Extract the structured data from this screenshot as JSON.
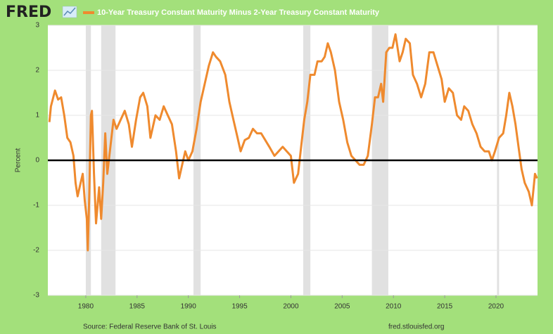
{
  "chart_data": {
    "type": "line",
    "brand": "FRED",
    "series": [
      {
        "name": "10-Year Treasury Constant Maturity Minus 2-Year Treasury Constant Maturity",
        "color": "#ef8a2e",
        "x": [
          1976.45,
          1976.6,
          1977.0,
          1977.3,
          1977.6,
          1977.9,
          1978.2,
          1978.5,
          1978.8,
          1979.0,
          1979.2,
          1979.5,
          1979.7,
          1979.9,
          1980.1,
          1980.2,
          1980.35,
          1980.5,
          1980.6,
          1980.8,
          1981.0,
          1981.3,
          1981.5,
          1981.7,
          1981.9,
          1982.1,
          1982.4,
          1982.7,
          1983.0,
          1983.4,
          1983.8,
          1984.2,
          1984.5,
          1984.9,
          1985.3,
          1985.6,
          1986.0,
          1986.3,
          1986.8,
          1987.2,
          1987.6,
          1988.0,
          1988.4,
          1988.8,
          1989.1,
          1989.4,
          1989.7,
          1990.0,
          1990.4,
          1990.8,
          1991.2,
          1991.6,
          1992.0,
          1992.4,
          1992.7,
          1993.1,
          1993.6,
          1994.0,
          1994.4,
          1994.8,
          1995.1,
          1995.5,
          1995.9,
          1996.3,
          1996.7,
          1997.1,
          1997.5,
          1997.9,
          1998.4,
          1998.8,
          1999.2,
          1999.6,
          2000.0,
          2000.3,
          2000.7,
          2001.0,
          2001.3,
          2001.6,
          2001.9,
          2002.3,
          2002.6,
          2003.0,
          2003.3,
          2003.6,
          2003.9,
          2004.3,
          2004.7,
          2005.1,
          2005.5,
          2005.9,
          2006.3,
          2006.7,
          2007.1,
          2007.5,
          2007.9,
          2008.2,
          2008.5,
          2008.8,
          2009.0,
          2009.3,
          2009.6,
          2009.9,
          2010.2,
          2010.6,
          2010.9,
          2011.2,
          2011.6,
          2011.9,
          2012.3,
          2012.7,
          2013.1,
          2013.5,
          2013.9,
          2014.3,
          2014.7,
          2015.0,
          2015.4,
          2015.8,
          2016.2,
          2016.6,
          2016.9,
          2017.3,
          2017.7,
          2018.1,
          2018.5,
          2018.9,
          2019.3,
          2019.6,
          2019.9,
          2020.3,
          2020.7,
          2021.0,
          2021.3,
          2021.6,
          2021.9,
          2022.2,
          2022.5,
          2022.8,
          2023.2,
          2023.5,
          2023.8,
          2024.0
        ],
        "values": [
          0.85,
          1.2,
          1.55,
          1.35,
          1.4,
          1.0,
          0.5,
          0.4,
          0.1,
          -0.5,
          -0.8,
          -0.5,
          -0.3,
          -0.9,
          -1.3,
          -2.0,
          -0.7,
          1.0,
          1.1,
          -0.3,
          -1.4,
          -0.6,
          -1.3,
          -0.5,
          0.6,
          -0.3,
          0.3,
          0.9,
          0.7,
          0.9,
          1.1,
          0.8,
          0.3,
          0.9,
          1.4,
          1.5,
          1.2,
          0.5,
          1.0,
          0.9,
          1.2,
          1.0,
          0.8,
          0.2,
          -0.4,
          -0.1,
          0.2,
          0.0,
          0.2,
          0.7,
          1.3,
          1.7,
          2.1,
          2.4,
          2.3,
          2.2,
          1.9,
          1.3,
          0.9,
          0.5,
          0.2,
          0.45,
          0.5,
          0.7,
          0.6,
          0.6,
          0.45,
          0.3,
          0.1,
          0.2,
          0.3,
          0.2,
          0.1,
          -0.5,
          -0.3,
          0.3,
          0.9,
          1.3,
          1.9,
          1.9,
          2.2,
          2.2,
          2.3,
          2.6,
          2.4,
          2.0,
          1.3,
          0.9,
          0.4,
          0.1,
          0.0,
          -0.1,
          -0.1,
          0.1,
          0.8,
          1.4,
          1.4,
          1.7,
          1.3,
          2.4,
          2.5,
          2.5,
          2.8,
          2.2,
          2.4,
          2.7,
          2.6,
          1.9,
          1.7,
          1.4,
          1.7,
          2.4,
          2.4,
          2.1,
          1.8,
          1.3,
          1.6,
          1.5,
          1.0,
          0.9,
          1.2,
          1.1,
          0.8,
          0.6,
          0.3,
          0.2,
          0.2,
          0.0,
          0.2,
          0.5,
          0.6,
          1.0,
          1.5,
          1.2,
          0.8,
          0.3,
          -0.2,
          -0.5,
          -0.7,
          -1.0,
          -0.3,
          -0.4
        ]
      }
    ],
    "recessions": [
      [
        1980.0,
        1980.5
      ],
      [
        1981.5,
        1982.9
      ],
      [
        1990.5,
        1991.2
      ],
      [
        2001.2,
        2001.9
      ],
      [
        2007.9,
        2009.5
      ],
      [
        2020.1,
        2020.3
      ]
    ],
    "zero_line": 0,
    "ylabel": "Percent",
    "xlim": [
      1976.3,
      2024.05
    ],
    "xticks": [
      1980,
      1985,
      1990,
      1995,
      2000,
      2005,
      2010,
      2015,
      2020
    ],
    "ylim": [
      -3,
      3
    ],
    "yticks": [
      3,
      2,
      1,
      0,
      -1,
      -2,
      -3
    ],
    "grid": true,
    "source": "Source: Federal Reserve Bank of St. Louis",
    "site": "fred.stlouisfed.org"
  }
}
